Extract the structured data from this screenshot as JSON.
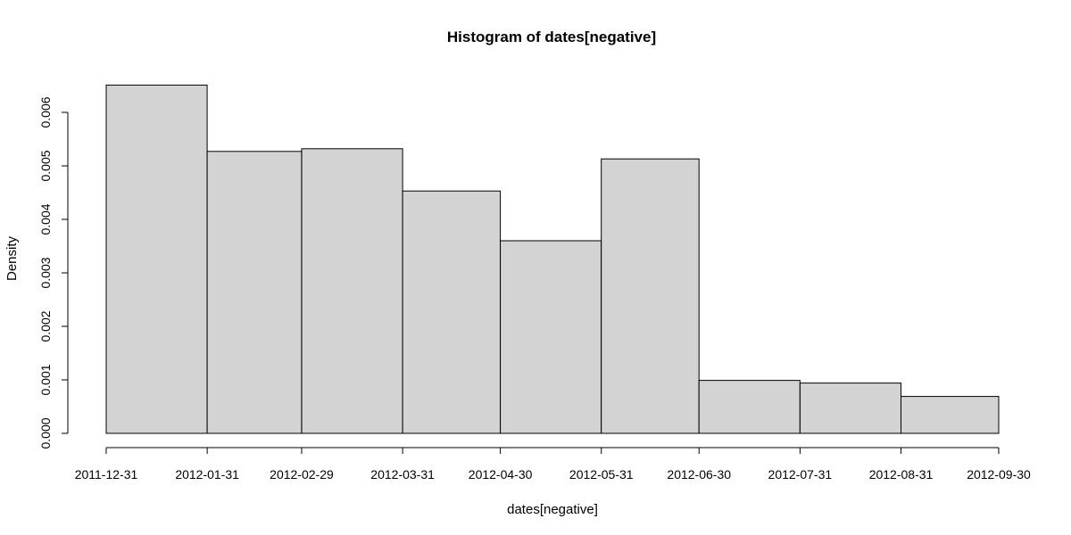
{
  "chart_data": {
    "type": "bar",
    "title": "Histogram of dates[negative]",
    "xlabel": "dates[negative]",
    "ylabel": "Density",
    "x_ticks": [
      "2011-12-31",
      "2012-01-31",
      "2012-02-29",
      "2012-03-31",
      "2012-04-30",
      "2012-05-31",
      "2012-06-30",
      "2012-07-31",
      "2012-08-31",
      "2012-09-30"
    ],
    "bin_edges": [
      "2011-12-31",
      "2012-01-31",
      "2012-02-29",
      "2012-03-31",
      "2012-04-30",
      "2012-05-31",
      "2012-06-30",
      "2012-07-31",
      "2012-08-31",
      "2012-09-30"
    ],
    "values": [
      0.00651,
      0.00527,
      0.00532,
      0.00453,
      0.0036,
      0.00513,
      0.00099,
      0.00094,
      0.00069
    ],
    "y_ticks": [
      "0.000",
      "0.001",
      "0.002",
      "0.003",
      "0.004",
      "0.005",
      "0.006"
    ],
    "y_tick_values": [
      0,
      0.001,
      0.002,
      0.003,
      0.004,
      0.005,
      0.006
    ],
    "ylim": [
      0,
      0.0065
    ],
    "grid": false
  }
}
